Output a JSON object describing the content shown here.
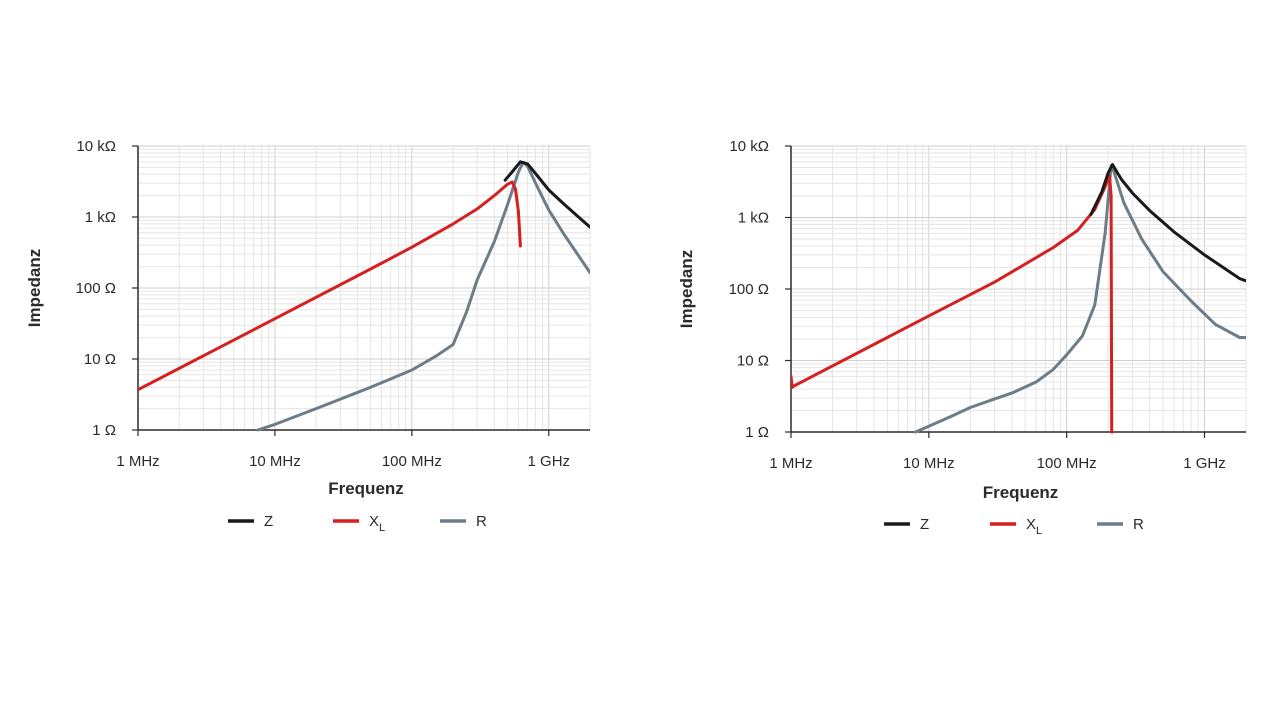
{
  "chart_data": [
    {
      "type": "line",
      "xscale": "log",
      "yscale": "log",
      "xlabel": "Frequenz",
      "ylabel": "Impedanz",
      "xlim_hz": [
        1000000,
        2000000000
      ],
      "ylim_ohm": [
        1,
        10000
      ],
      "xticks": [
        {
          "value": 1000000,
          "label": "1 MHz"
        },
        {
          "value": 10000000,
          "label": "10 MHz"
        },
        {
          "value": 100000000,
          "label": "100 MHz"
        },
        {
          "value": 1000000000,
          "label": "1 GHz"
        }
      ],
      "yticks": [
        {
          "value": 1,
          "label": "1 Ω"
        },
        {
          "value": 10,
          "label": "10 Ω"
        },
        {
          "value": 100,
          "label": "100 Ω"
        },
        {
          "value": 1000,
          "label": "1 kΩ"
        },
        {
          "value": 10000,
          "label": "10 kΩ"
        }
      ],
      "grid": true,
      "legend_position": "bottom",
      "series": [
        {
          "name": "Z",
          "label_main": "Z",
          "label_sub": "",
          "color": "#1a1a1a",
          "x": [
            480000000,
            550000000,
            620000000,
            700000000,
            800000000,
            1000000000,
            1300000000,
            2000000000
          ],
          "y": [
            3300,
            4500,
            6000,
            5600,
            4100,
            2400,
            1500,
            720
          ]
        },
        {
          "name": "XL",
          "label_main": "X",
          "label_sub": "L",
          "color": "#d42020",
          "x": [
            1000000,
            10000000,
            50000000,
            100000000,
            200000000,
            300000000,
            400000000,
            500000000,
            540000000,
            570000000,
            600000000,
            620000000
          ],
          "y": [
            3.7,
            37,
            185,
            375,
            800,
            1300,
            2000,
            2900,
            3100,
            2500,
            1200,
            390
          ]
        },
        {
          "name": "R",
          "label_main": "R",
          "label_sub": "",
          "color": "#6d7d87",
          "x": [
            7500000,
            10000000,
            20000000,
            50000000,
            100000000,
            150000000,
            200000000,
            250000000,
            300000000,
            400000000,
            500000000,
            600000000,
            650000000,
            700000000,
            800000000,
            1000000000,
            1300000000,
            2000000000
          ],
          "y": [
            1,
            1.2,
            2,
            4,
            7,
            11,
            16,
            45,
            130,
            450,
            1500,
            4300,
            5900,
            5200,
            3000,
            1250,
            560,
            165
          ]
        }
      ]
    },
    {
      "type": "line",
      "xscale": "log",
      "yscale": "log",
      "xlabel": "Frequenz",
      "ylabel": "Impedanz",
      "xlim_hz": [
        1000000,
        2000000000
      ],
      "ylim_ohm": [
        1,
        10000
      ],
      "xticks": [
        {
          "value": 1000000,
          "label": "1 MHz"
        },
        {
          "value": 10000000,
          "label": "10 MHz"
        },
        {
          "value": 100000000,
          "label": "100 MHz"
        },
        {
          "value": 1000000000,
          "label": "1 GHz"
        }
      ],
      "yticks": [
        {
          "value": 1,
          "label": "1 Ω"
        },
        {
          "value": 10,
          "label": "10 Ω"
        },
        {
          "value": 100,
          "label": "100 Ω"
        },
        {
          "value": 1000,
          "label": "1 kΩ"
        },
        {
          "value": 10000,
          "label": "10 kΩ"
        }
      ],
      "grid": true,
      "legend_position": "bottom",
      "series": [
        {
          "name": "Z",
          "label_main": "Z",
          "label_sub": "",
          "color": "#1a1a1a",
          "x": [
            150000000,
            180000000,
            200000000,
            215000000,
            250000000,
            300000000,
            400000000,
            600000000,
            1000000000,
            1800000000,
            2000000000
          ],
          "y": [
            1100,
            2300,
            4200,
            5500,
            3400,
            2200,
            1250,
            630,
            300,
            140,
            130
          ]
        },
        {
          "name": "XL",
          "label_main": "X",
          "label_sub": "L",
          "color": "#d42020",
          "x": [
            1000000,
            1020000,
            1050000,
            2000000,
            5000000,
            10000000,
            30000000,
            80000000,
            120000000,
            160000000,
            190000000,
            205000000,
            210000000,
            212000000,
            215000000
          ],
          "y": [
            6,
            4.2,
            4.4,
            8.4,
            21,
            42,
            125,
            380,
            660,
            1300,
            2700,
            3800,
            2000,
            1,
            1
          ]
        },
        {
          "name": "R",
          "label_main": "R",
          "label_sub": "",
          "color": "#6d7d87",
          "x": [
            8000000,
            10000000,
            15000000,
            20000000,
            30000000,
            40000000,
            60000000,
            80000000,
            100000000,
            130000000,
            160000000,
            190000000,
            210000000,
            220000000,
            260000000,
            350000000,
            500000000,
            800000000,
            1200000000,
            1800000000,
            2000000000
          ],
          "y": [
            1,
            1.2,
            1.7,
            2.2,
            2.9,
            3.5,
            5,
            7.5,
            12,
            22,
            60,
            600,
            5300,
            4400,
            1600,
            500,
            175,
            68,
            32,
            21,
            21
          ]
        }
      ]
    }
  ]
}
